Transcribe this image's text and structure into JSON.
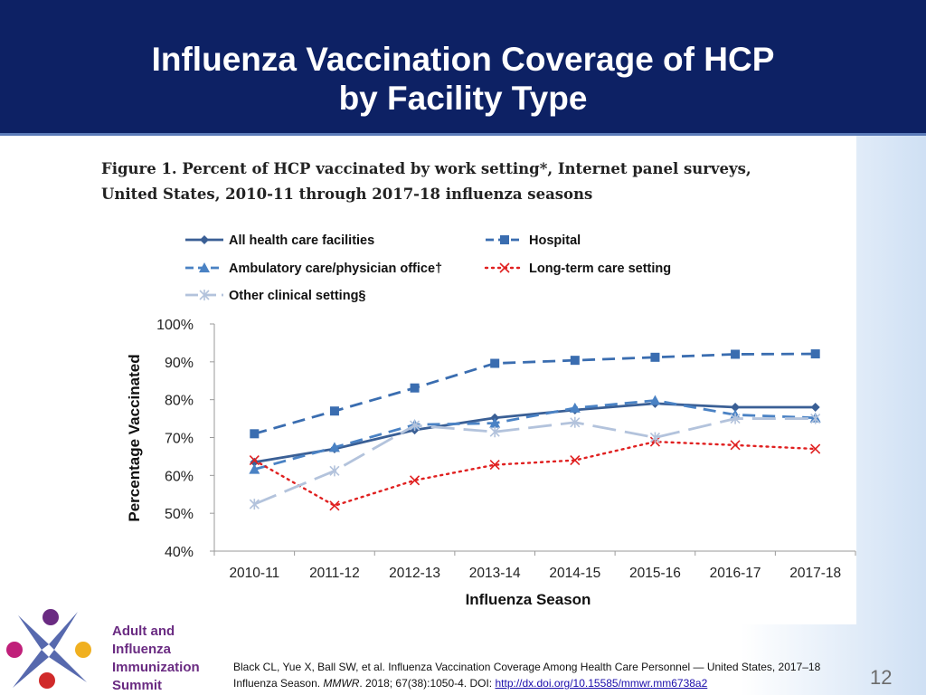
{
  "slide": {
    "title_line1": "Influenza Vaccination Coverage of HCP",
    "title_line2": "by Facility Type",
    "page_number": "12"
  },
  "figure": {
    "caption_line1": "Figure 1. Percent of HCP vaccinated by work setting*, Internet panel surveys,",
    "caption_line2": "United States, 2010-11 through 2017-18 influenza seasons"
  },
  "chart_data": {
    "type": "line",
    "xlabel": "Influenza Season",
    "ylabel": "Percentage Vaccinated",
    "ylim": [
      40,
      100
    ],
    "yticks": [
      "40%",
      "50%",
      "60%",
      "70%",
      "80%",
      "90%",
      "100%"
    ],
    "categories": [
      "2010-11",
      "2011-12",
      "2012-13",
      "2013-14",
      "2014-15",
      "2015-16",
      "2016-17",
      "2017-18"
    ],
    "grid": false,
    "legend_position": "top",
    "series": [
      {
        "name": "All health care facilities",
        "color": "#3a5f95",
        "style": "solid",
        "marker": "diamond",
        "values": [
          63.5,
          67,
          72,
          75.2,
          77.3,
          79,
          78,
          78
        ]
      },
      {
        "name": "Hospital",
        "color": "#3a6db0",
        "style": "dashed",
        "marker": "square",
        "values": [
          71,
          77,
          83.1,
          89.6,
          90.4,
          91.2,
          92,
          92.1
        ]
      },
      {
        "name": "Ambulatory care/physician office†",
        "color": "#4a82c4",
        "style": "dashed",
        "marker": "triangle",
        "values": [
          61.6,
          67.4,
          73.4,
          73.8,
          77.8,
          79.8,
          76,
          75.2
        ]
      },
      {
        "name": "Long-term care setting",
        "color": "#e02020",
        "style": "dotted",
        "marker": "x",
        "values": [
          64,
          52,
          58.7,
          62.8,
          64,
          68.9,
          68,
          67
        ]
      },
      {
        "name": "Other clinical setting§",
        "color": "#b3c3dc",
        "style": "longdash",
        "marker": "star",
        "values": [
          52.4,
          61.2,
          73.2,
          71.5,
          74,
          70,
          75,
          75
        ]
      }
    ]
  },
  "citation": {
    "text_before": "Black CL, Yue X, Ball SW, et al. Influenza Vaccination Coverage Among Health Care Personnel — United States, 2017–18 Influenza Season. ",
    "journal": "MMWR",
    "text_after": ". 2018; 67(38):1050-4. DOI: ",
    "link": "http://dx.doi.org/10.15585/mmwr.mm6738a2"
  },
  "logo": {
    "line1": "Adult and",
    "line2": "Influenza",
    "line3": "Immunization",
    "line4": "Summit"
  }
}
